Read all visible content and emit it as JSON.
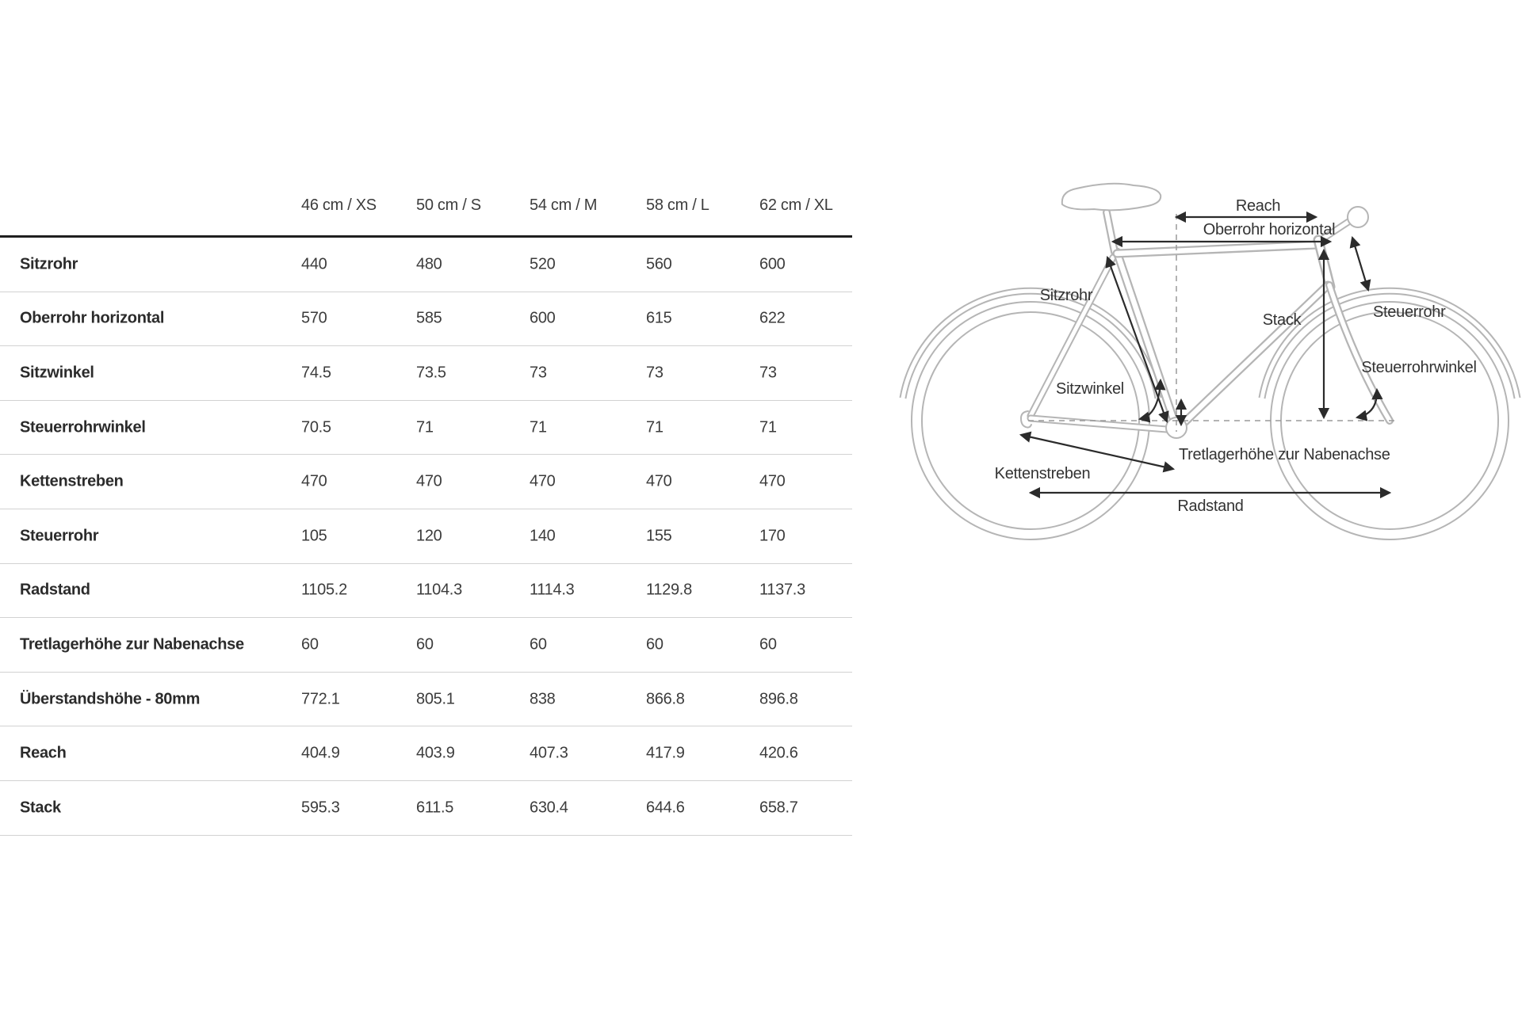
{
  "table": {
    "columns": [
      "46 cm / XS",
      "50 cm / S",
      "54 cm / M",
      "58 cm / L",
      "62 cm / XL"
    ],
    "rows": [
      {
        "label": "Sitzrohr",
        "values": [
          "440",
          "480",
          "520",
          "560",
          "600"
        ]
      },
      {
        "label": "Oberrohr horizontal",
        "values": [
          "570",
          "585",
          "600",
          "615",
          "622"
        ]
      },
      {
        "label": "Sitzwinkel",
        "values": [
          "74.5",
          "73.5",
          "73",
          "73",
          "73"
        ]
      },
      {
        "label": "Steuerrohrwinkel",
        "values": [
          "70.5",
          "71",
          "71",
          "71",
          "71"
        ]
      },
      {
        "label": "Kettenstreben",
        "values": [
          "470",
          "470",
          "470",
          "470",
          "470"
        ]
      },
      {
        "label": "Steuerrohr",
        "values": [
          "105",
          "120",
          "140",
          "155",
          "170"
        ]
      },
      {
        "label": "Radstand",
        "values": [
          "1105.2",
          "1104.3",
          "1114.3",
          "1129.8",
          "1137.3"
        ]
      },
      {
        "label": "Tretlagerhöhe zur Nabenachse",
        "values": [
          "60",
          "60",
          "60",
          "60",
          "60"
        ]
      },
      {
        "label": "Überstandshöhe - 80mm",
        "values": [
          "772.1",
          "805.1",
          "838",
          "866.8",
          "896.8"
        ]
      },
      {
        "label": "Reach",
        "values": [
          "404.9",
          "403.9",
          "407.3",
          "417.9",
          "420.6"
        ]
      },
      {
        "label": "Stack",
        "values": [
          "595.3",
          "611.5",
          "630.4",
          "644.6",
          "658.7"
        ]
      }
    ]
  },
  "diagram": {
    "labels": {
      "reach": "Reach",
      "oberrohr_horizontal": "Oberrohr horizontal",
      "steuerrohr": "Steuerrohr",
      "sitzrohr": "Sitzrohr",
      "stack": "Stack",
      "steuerrohrwinkel": "Steuerrohrwinkel",
      "sitzwinkel": "Sitzwinkel",
      "kettenstreben": "Kettenstreben",
      "tretlagerhoehe": "Tretlagerhöhe zur Nabenachse",
      "radstand": "Radstand"
    }
  },
  "colors": {
    "text_primary": "#2b2b2b",
    "text_values": "#3c3c3c",
    "heavy_rule": "#1f1f1f",
    "light_rule": "#d2d2d2",
    "bike_outline": "#b5b5b5",
    "annotation": "#2b2b2b",
    "dashed_guides": "#9a9a9a"
  }
}
